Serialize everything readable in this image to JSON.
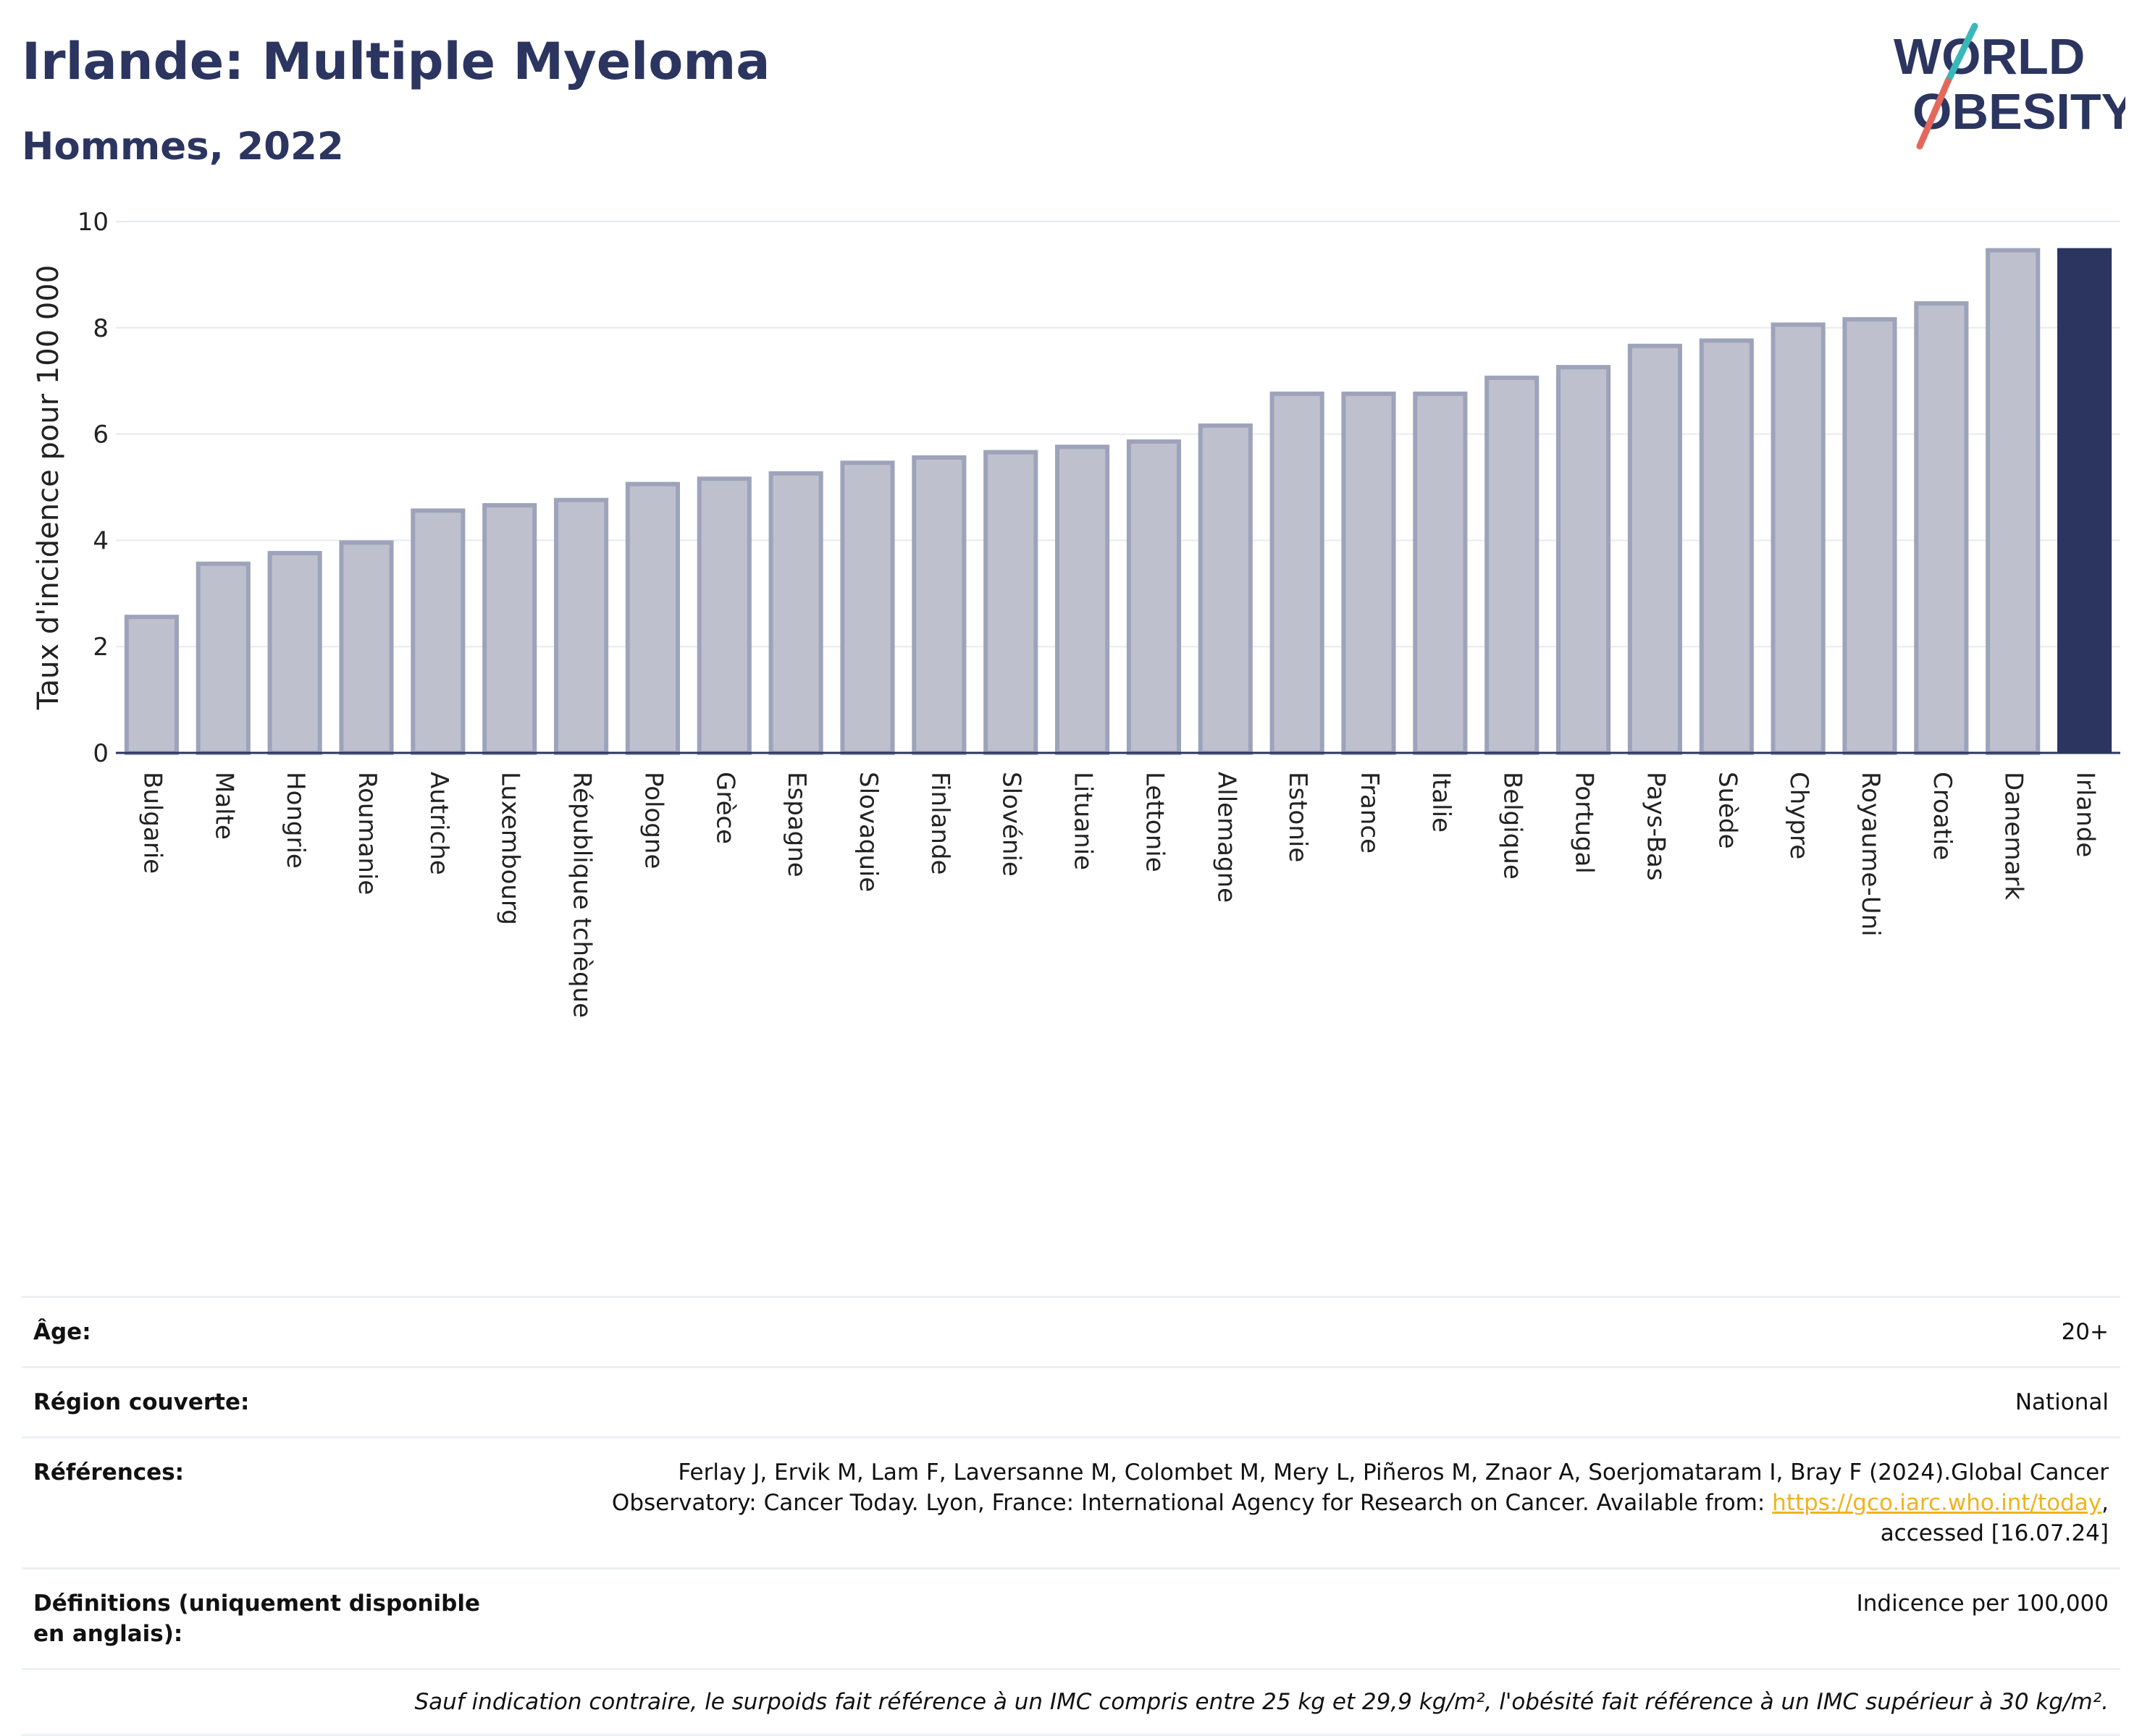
{
  "header": {
    "title": "Irlande: Multiple Myeloma",
    "subtitle": "Hommes, 2022"
  },
  "logo": {
    "line1": "WORLD",
    "line2": "OBESITY",
    "colors": {
      "text": "#2b3560",
      "slash_top": "#3ab8b8",
      "slash_bottom": "#e5675c"
    }
  },
  "chart_data": {
    "type": "bar",
    "title": "Irlande: Multiple Myeloma",
    "subtitle": "Hommes, 2022",
    "ylabel": "Taux d'incidence pour 100 000",
    "xlabel": "",
    "ylim": [
      0,
      10
    ],
    "yticks": [
      0,
      2,
      4,
      6,
      8,
      10
    ],
    "grid": true,
    "categories": [
      "Bulgarie",
      "Malte",
      "Hongrie",
      "Roumanie",
      "Autriche",
      "Luxembourg",
      "République tchèque",
      "Pologne",
      "Grèce",
      "Espagne",
      "Slovaquie",
      "Finlande",
      "Slovénie",
      "Lituanie",
      "Lettonie",
      "Allemagne",
      "Estonie",
      "France",
      "Italie",
      "Belgique",
      "Portugal",
      "Pays-Bas",
      "Suède",
      "Chypre",
      "Royaume-Uni",
      "Croatie",
      "Danemark",
      "Irlande"
    ],
    "values": [
      2.6,
      3.6,
      3.8,
      4.0,
      4.6,
      4.7,
      4.8,
      5.1,
      5.2,
      5.3,
      5.5,
      5.6,
      5.7,
      5.8,
      5.9,
      6.2,
      6.8,
      6.8,
      6.8,
      7.1,
      7.3,
      7.7,
      7.8,
      8.1,
      8.2,
      8.5,
      9.5,
      9.5
    ],
    "highlight": "Irlande",
    "colors": {
      "bar_fill": "#bec1cd",
      "bar_stroke": "#9da3ba",
      "highlight": "#2b3560",
      "grid": "#e8eaf0",
      "axis": "#2b3560"
    }
  },
  "info": {
    "age_label": "Âge:",
    "age_value": "20+",
    "region_label": "Région couverte:",
    "region_value": "National",
    "references_label": "Références:",
    "references_text_1": "Ferlay J, Ervik M, Lam F, Laversanne M, Colombet M, Mery L, Piñeros M, Znaor A, Soerjomataram I, Bray F (2024).Global Cancer",
    "references_text_2": "Observatory: Cancer Today. Lyon, France: International Agency for Research on Cancer. Available from: ",
    "references_link": "https://gco.iarc.who.int/today",
    "references_text_3": ",",
    "references_text_4": "accessed [16.07.24]",
    "definitions_label": "Définitions (uniquement disponible en anglais):",
    "definitions_value": "Indicence per 100,000",
    "note": "Sauf indication contraire, le surpoids fait référence à un IMC compris entre 25 kg et 29,9 kg/m², l'obésité fait référence à un IMC supérieur à 30 kg/m²."
  }
}
